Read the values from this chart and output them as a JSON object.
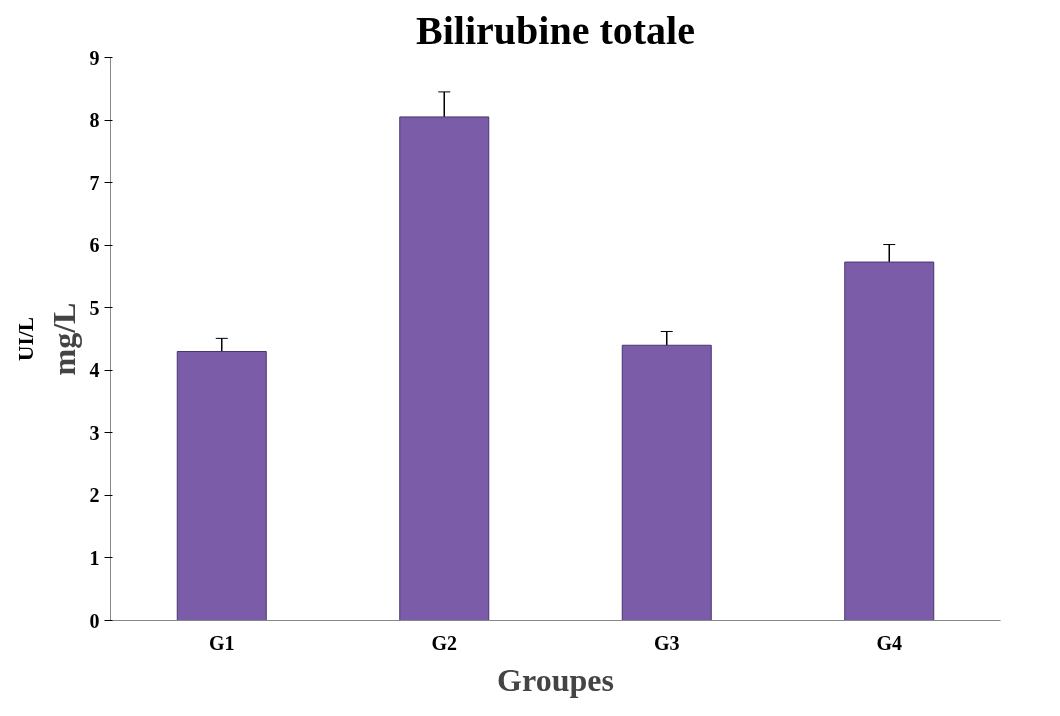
{
  "chart_data": {
    "type": "bar",
    "title": "Bilirubine totale",
    "xlabel": "Groupes",
    "ylabel": "mg/L",
    "annotations": [
      "UI/L"
    ],
    "categories": [
      "G1",
      "G2",
      "G3",
      "G4"
    ],
    "values": [
      4.3,
      8.05,
      4.4,
      5.73
    ],
    "errors": [
      0.21,
      0.4,
      0.22,
      0.28
    ],
    "color": "#7b5ca8",
    "ylim": [
      0,
      9
    ],
    "yticks": [
      0,
      1,
      2,
      3,
      4,
      5,
      6,
      7,
      8,
      9
    ],
    "grid": false
  }
}
